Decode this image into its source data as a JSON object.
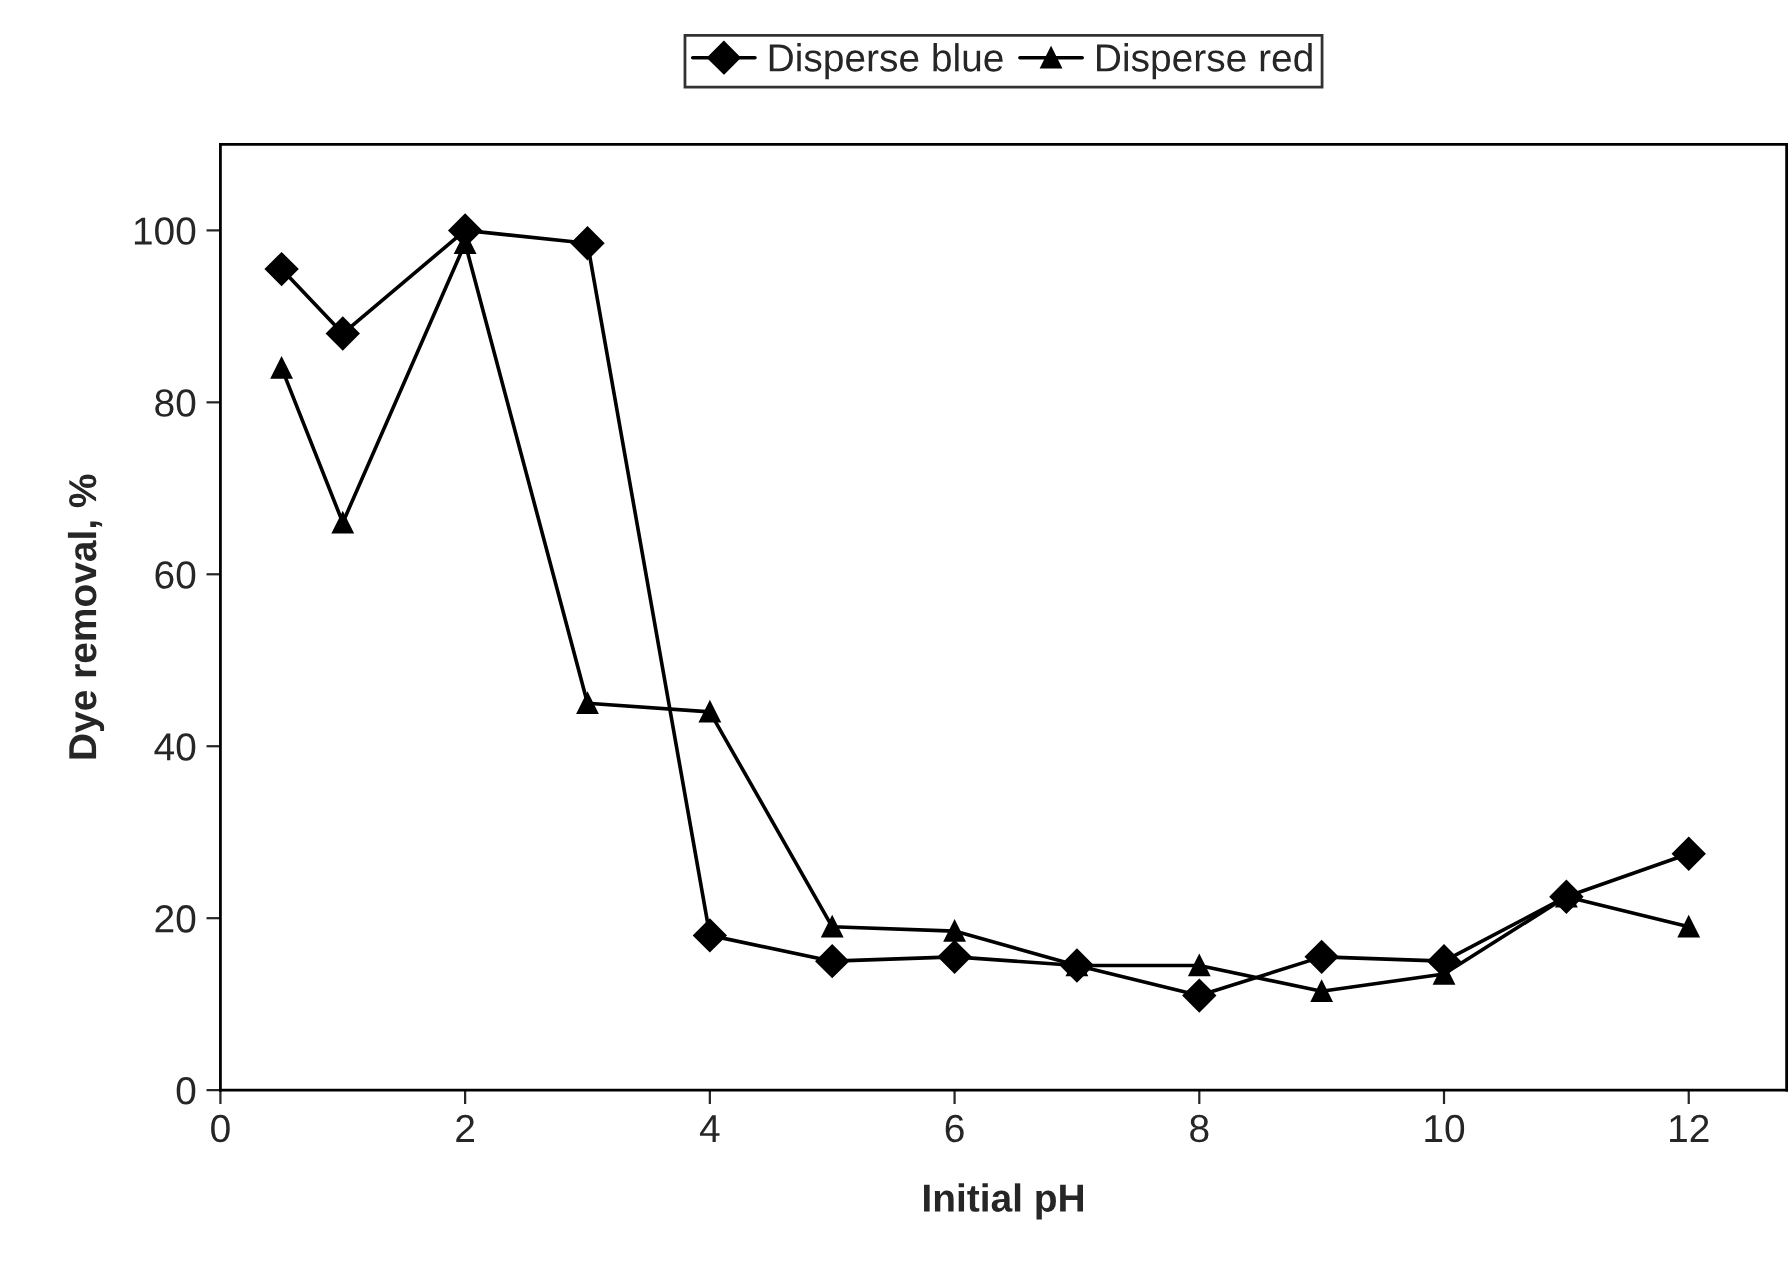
{
  "chart_data": {
    "type": "line",
    "xlabel": "Initial pH",
    "ylabel": "Dye removal, %",
    "x": [
      0.5,
      1,
      2,
      3,
      4,
      5,
      6,
      7,
      8,
      9,
      10,
      11,
      12
    ],
    "series": [
      {
        "name": "Disperse blue",
        "color": "#000000",
        "marker": "diamond",
        "values": [
          95.5,
          88,
          100,
          98.5,
          18,
          15,
          15.5,
          14.5,
          11,
          15.5,
          15,
          22.5,
          27.5
        ]
      },
      {
        "name": "Disperse red",
        "color": "#000000",
        "marker": "triangle",
        "values": [
          84,
          66,
          98.5,
          45,
          44,
          19,
          18.5,
          14.5,
          14.5,
          11.5,
          13.5,
          22.5,
          19
        ]
      }
    ],
    "xlim": [
      0,
      12.8
    ],
    "xticks": [
      0,
      2,
      4,
      6,
      8,
      10,
      12
    ],
    "ylim": [
      0,
      110
    ],
    "yticks": [
      0,
      20,
      40,
      60,
      80,
      100
    ],
    "grid": false,
    "legend": "top",
    "line_style": "solid"
  }
}
